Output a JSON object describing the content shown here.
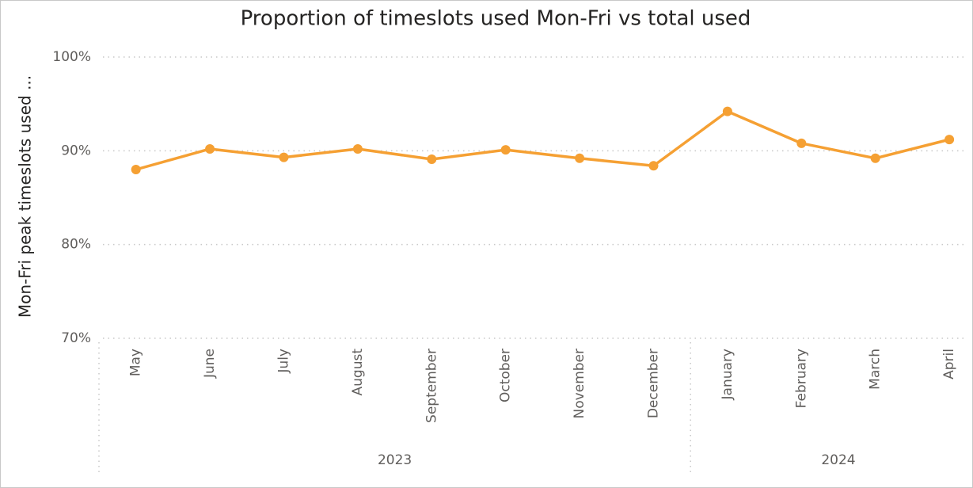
{
  "chart_data": {
    "type": "line",
    "title": "Proportion of timeslots used Mon-Fri vs total used",
    "y_label": "Mon-Fri peak timeslots used ...",
    "groups": [
      {
        "name": "2023",
        "categories": [
          "May",
          "June",
          "July",
          "August",
          "September",
          "October",
          "November",
          "December"
        ]
      },
      {
        "name": "2024",
        "categories": [
          "January",
          "February",
          "March",
          "April"
        ]
      }
    ],
    "series": [
      {
        "name": "Mon-Fri peak timeslots used",
        "color": "#f5a033",
        "values": [
          88.0,
          90.2,
          89.3,
          90.2,
          89.1,
          90.1,
          89.2,
          88.4,
          94.2,
          90.8,
          89.2,
          91.2
        ]
      }
    ],
    "ylim": [
      70,
      100
    ],
    "yticks": [
      {
        "value": 70,
        "label": "70%"
      },
      {
        "value": 80,
        "label": "80%"
      },
      {
        "value": 90,
        "label": "90%"
      },
      {
        "value": 100,
        "label": "100%"
      }
    ],
    "grid": true
  }
}
